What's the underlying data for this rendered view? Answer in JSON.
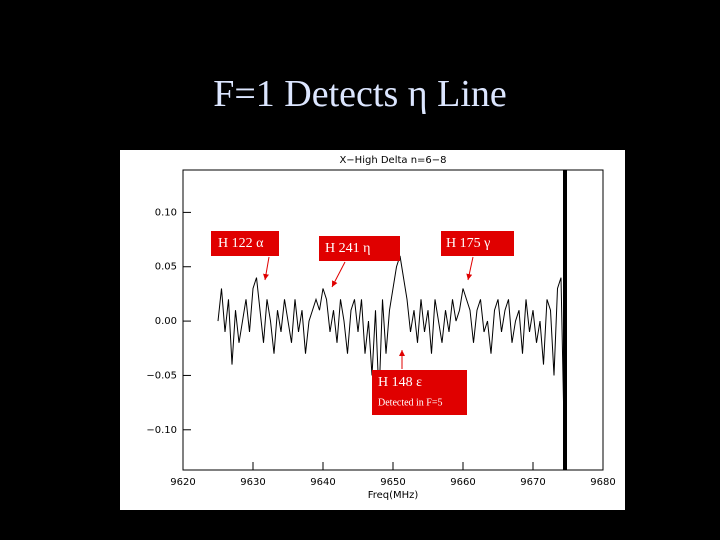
{
  "slide_title": "F=1 Detects η Line",
  "chart_data": {
    "type": "line",
    "title": "X−High Delta n=6−8",
    "x_label": "Freq(MHz)",
    "xlim": [
      9620,
      9680
    ],
    "ylim": [
      -0.137,
      0.139
    ],
    "xticks": [
      9620,
      9630,
      9640,
      9650,
      9660,
      9670,
      9680
    ],
    "yticks": [
      {
        "value": 0.1,
        "label": "0.10"
      },
      {
        "value": 0.05,
        "label": "0.05"
      },
      {
        "value": 0,
        "label": "0.00"
      },
      {
        "value": -0.05,
        "label": "−0.05"
      },
      {
        "value": -0.1,
        "label": "−0.10"
      }
    ],
    "x": [
      9625,
      9625.5,
      9626,
      9626.5,
      9627,
      9627.5,
      9628,
      9628.5,
      9629,
      9629.5,
      9630,
      9630.5,
      9631,
      9631.5,
      9632,
      9632.5,
      9633,
      9633.5,
      9634,
      9634.5,
      9635,
      9635.5,
      9636,
      9636.5,
      9637,
      9637.5,
      9638,
      9638.5,
      9639,
      9639.5,
      9640,
      9640.5,
      9641,
      9641.5,
      9642,
      9642.5,
      9643,
      9643.5,
      9644,
      9644.5,
      9645,
      9645.5,
      9646,
      9646.5,
      9647,
      9647.5,
      9648,
      9648.5,
      9649,
      9649.5,
      9650,
      9650.5,
      9651,
      9651.5,
      9652,
      9652.5,
      9653,
      9653.5,
      9654,
      9654.5,
      9655,
      9655.5,
      9656,
      9656.5,
      9657,
      9657.5,
      9658,
      9658.5,
      9659,
      9659.5,
      9660,
      9660.5,
      9661,
      9661.5,
      9662,
      9662.5,
      9663,
      9663.5,
      9664,
      9664.5,
      9665,
      9665.5,
      9666,
      9666.5,
      9667,
      9667.5,
      9668,
      9668.5,
      9669,
      9669.5,
      9670,
      9670.5,
      9671,
      9671.5,
      9672,
      9672.5,
      9673,
      9673.5,
      9674,
      9674.5
    ],
    "series": [
      {
        "color": "#000000",
        "values": [
          0.0,
          0.03,
          -0.01,
          0.02,
          -0.04,
          0.01,
          -0.02,
          0.0,
          0.02,
          -0.01,
          0.03,
          0.04,
          0.01,
          -0.02,
          0.02,
          0.0,
          -0.03,
          0.01,
          -0.01,
          0.02,
          0.0,
          -0.02,
          0.02,
          -0.01,
          0.01,
          -0.03,
          0.0,
          0.01,
          0.02,
          0.01,
          0.03,
          0.02,
          -0.01,
          0.01,
          -0.02,
          0.02,
          0.0,
          -0.03,
          0.01,
          0.02,
          -0.01,
          0.02,
          -0.03,
          0.0,
          -0.05,
          0.01,
          -0.07,
          0.02,
          -0.03,
          0.01,
          0.03,
          0.05,
          0.06,
          0.04,
          0.02,
          -0.01,
          0.01,
          -0.02,
          0.02,
          -0.01,
          0.01,
          -0.03,
          0.02,
          0.0,
          -0.02,
          0.01,
          -0.01,
          0.02,
          0.0,
          0.01,
          0.03,
          0.02,
          0.01,
          -0.02,
          0.01,
          0.02,
          -0.01,
          0.0,
          -0.03,
          0.01,
          0.02,
          -0.01,
          0.01,
          0.02,
          -0.02,
          0.0,
          0.01,
          -0.03,
          0.02,
          -0.01,
          0.01,
          -0.02,
          0.0,
          -0.04,
          0.02,
          0.01,
          -0.05,
          0.03,
          0.04,
          -0.12
        ]
      }
    ],
    "annotations": [
      "H 122 α",
      "H 241 η",
      "H 175 γ",
      "H 148 ε",
      "Detected in F=5"
    ]
  }
}
